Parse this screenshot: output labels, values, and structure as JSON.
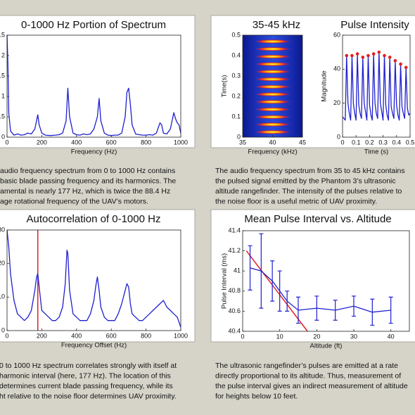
{
  "chart_data": [
    {
      "type": "line",
      "title": "0-1000 Hz Portion of Spectrum",
      "xlabel": "Frequency (Hz)",
      "xlim": [
        0,
        1000
      ],
      "xticks": [
        0,
        200,
        400,
        600,
        800,
        1000
      ],
      "ylim": [
        0,
        2.5
      ],
      "yticks": [
        0,
        0.5,
        1,
        1.5,
        2,
        2.5
      ],
      "x": [
        0,
        5,
        10,
        20,
        40,
        60,
        80,
        100,
        120,
        140,
        160,
        170,
        177,
        185,
        200,
        220,
        250,
        280,
        300,
        320,
        340,
        350,
        360,
        380,
        400,
        420,
        440,
        460,
        480,
        500,
        520,
        530,
        540,
        560,
        580,
        600,
        620,
        640,
        660,
        680,
        690,
        700,
        710,
        720,
        740,
        760,
        780,
        800,
        820,
        840,
        860,
        880,
        890,
        900,
        920,
        940,
        950,
        960,
        970,
        980,
        990,
        1000
      ],
      "series": [
        {
          "color": "#1f1fd0",
          "values": [
            2.5,
            1.8,
            0.6,
            0.15,
            0.05,
            0.08,
            0.05,
            0.06,
            0.1,
            0.08,
            0.2,
            0.4,
            0.55,
            0.3,
            0.1,
            0.05,
            0.04,
            0.05,
            0.06,
            0.1,
            0.4,
            1.2,
            0.5,
            0.1,
            0.06,
            0.05,
            0.08,
            0.06,
            0.08,
            0.2,
            0.5,
            0.95,
            0.4,
            0.1,
            0.05,
            0.04,
            0.05,
            0.05,
            0.1,
            0.5,
            1.1,
            1.2,
            0.8,
            0.3,
            0.08,
            0.06,
            0.05,
            0.05,
            0.06,
            0.05,
            0.1,
            0.35,
            0.3,
            0.1,
            0.08,
            0.2,
            0.4,
            0.6,
            0.45,
            0.35,
            0.3,
            0.1
          ]
        }
      ]
    },
    {
      "type": "spectrogram",
      "title": "35-45 kHz",
      "xlabel": "Frequency (kHz)",
      "ylabel": "Time(s)",
      "xlim": [
        35,
        45
      ],
      "xticks": [
        35,
        40,
        45
      ],
      "ylim": [
        0,
        0.5
      ],
      "yticks": [
        0,
        0.1,
        0.2,
        0.3,
        0.4,
        0.5
      ],
      "x": [
        40,
        40,
        40,
        40,
        40,
        40,
        40,
        40,
        40,
        40,
        40,
        40,
        40
      ],
      "values": [
        0.025,
        0.062,
        0.099,
        0.136,
        0.173,
        0.21,
        0.247,
        0.284,
        0.321,
        0.358,
        0.395,
        0.432,
        0.469
      ]
    },
    {
      "type": "line",
      "title": "Pulse Intensity",
      "xlabel": "Time (s)",
      "ylabel": "Magnitude",
      "xlim": [
        0,
        0.5
      ],
      "xticks": [
        0,
        0.1,
        0.2,
        0.3,
        0.4,
        0.5
      ],
      "ylim": [
        0,
        60
      ],
      "yticks": [
        0,
        20,
        40,
        60
      ],
      "x": [
        0,
        0.02,
        0.03,
        0.04,
        0.05,
        0.06,
        0.07,
        0.08,
        0.09,
        0.1,
        0.11,
        0.12,
        0.13,
        0.14,
        0.15,
        0.16,
        0.17,
        0.18,
        0.19,
        0.2,
        0.21,
        0.22,
        0.23,
        0.24,
        0.25,
        0.26,
        0.27,
        0.28,
        0.29,
        0.3,
        0.31,
        0.32,
        0.33,
        0.34,
        0.35,
        0.36,
        0.37,
        0.38,
        0.39,
        0.4,
        0.41,
        0.42,
        0.43,
        0.44,
        0.45,
        0.46,
        0.47,
        0.48,
        0.49,
        0.5
      ],
      "series": [
        {
          "color": "#1f1fd0",
          "values": [
            12,
            10,
            48,
            20,
            14,
            10,
            48,
            20,
            14,
            10,
            49,
            19,
            14,
            11,
            47,
            20,
            15,
            10,
            48,
            19,
            13,
            10,
            49,
            20,
            14,
            11,
            50,
            20,
            15,
            10,
            48,
            19,
            13,
            10,
            47,
            18,
            14,
            11,
            45,
            19,
            13,
            10,
            43,
            18,
            14,
            11,
            41,
            17,
            13,
            14
          ]
        }
      ],
      "peaks": {
        "color": "#e02020",
        "x": [
          0.03,
          0.07,
          0.11,
          0.15,
          0.19,
          0.23,
          0.27,
          0.31,
          0.35,
          0.39,
          0.43,
          0.47
        ],
        "values": [
          48,
          48,
          49,
          47,
          48,
          49,
          50,
          48,
          47,
          45,
          43,
          41
        ]
      }
    },
    {
      "type": "line",
      "title": "Autocorrelation of 0-1000 Hz",
      "xlabel": "Frequency Offset (Hz)",
      "xlim": [
        0,
        1000
      ],
      "xticks": [
        0,
        200,
        400,
        600,
        800,
        1000
      ],
      "ylim": [
        0,
        30
      ],
      "yticks": [
        0,
        10,
        20,
        30
      ],
      "marker_x": 177,
      "marker_color": "#e02020",
      "x": [
        0,
        10,
        20,
        40,
        60,
        80,
        100,
        120,
        140,
        160,
        170,
        177,
        185,
        200,
        220,
        240,
        260,
        280,
        300,
        320,
        335,
        345,
        350,
        360,
        380,
        400,
        420,
        440,
        460,
        480,
        500,
        510,
        520,
        530,
        540,
        560,
        580,
        600,
        620,
        640,
        660,
        680,
        690,
        700,
        710,
        720,
        740,
        760,
        780,
        800,
        820,
        840,
        860,
        880,
        900,
        920,
        940,
        960,
        980,
        1000
      ],
      "series": [
        {
          "color": "#1f1fd0",
          "values": [
            30,
            25,
            17,
            9,
            5,
            4,
            3,
            4,
            6,
            12,
            16,
            17,
            13,
            6,
            5,
            4,
            3,
            3,
            4,
            7,
            14,
            24,
            23,
            12,
            5,
            4,
            3,
            3,
            3,
            5,
            9,
            13,
            16,
            12,
            7,
            4,
            3,
            3,
            3,
            5,
            8,
            12,
            14,
            13,
            8,
            5,
            4,
            3,
            3,
            4,
            5,
            6,
            7,
            8,
            9,
            7,
            6,
            5,
            4,
            1
          ]
        }
      ]
    },
    {
      "type": "errorbar",
      "title": "Mean Pulse Interval vs. Altitude",
      "xlabel": "Altitude (ft)",
      "ylabel": "Pulse Interval (ms)",
      "xlim": [
        0,
        45
      ],
      "xticks": [
        0,
        10,
        20,
        30,
        40
      ],
      "ylim": [
        40.4,
        41.4
      ],
      "yticks": [
        40.4,
        40.6,
        40.8,
        41,
        41.2,
        41.4
      ],
      "color": "#1f1fd0",
      "x": [
        2,
        5,
        8,
        10,
        12,
        15,
        20,
        25,
        30,
        35,
        40
      ],
      "values": [
        41.03,
        41.0,
        40.9,
        40.8,
        40.7,
        40.61,
        40.63,
        40.61,
        40.65,
        40.59,
        40.61
      ],
      "errors": [
        0.22,
        0.37,
        0.2,
        0.2,
        0.1,
        0.13,
        0.12,
        0.1,
        0.1,
        0.13,
        0.13
      ],
      "fit": {
        "color": "#e02020",
        "x": [
          1,
          17.5
        ],
        "values": [
          41.2,
          40.4
        ]
      }
    }
  ],
  "captions": [
    [
      "audio frequency spectrum from 0 to 1000 Hz contains",
      "basic blade passing frequency and its harmonics. The",
      "amental is nearly 177 Hz, which is twice the 88.4 Hz",
      "age rotational frequency of the UAV’s motors."
    ],
    [
      "The audio frequency spectrum from 35 to 45 kHz contains",
      "the pulsed signal emitted by the Phantom 3’s ultrasonic",
      "altitude rangefinder. The intensity of the pulses relative to",
      "the noise floor is a useful metric of UAV proximity."
    ],
    [
      "0 to 1000 Hz spectrum correlates strongly with itself at",
      "harmonic interval (here, 177 Hz). The location of this",
      "determines current blade passing frequency, while its",
      "ht relative to the noise floor determines UAV proximity."
    ],
    [
      "The ultrasonic rangefinder’s pulses are emitted at a rate",
      "directly proportional to its altitude. Thus, measurement of",
      "the pulse interval gives an indirect measurement of altitude",
      "for heights below 10 feet."
    ]
  ]
}
